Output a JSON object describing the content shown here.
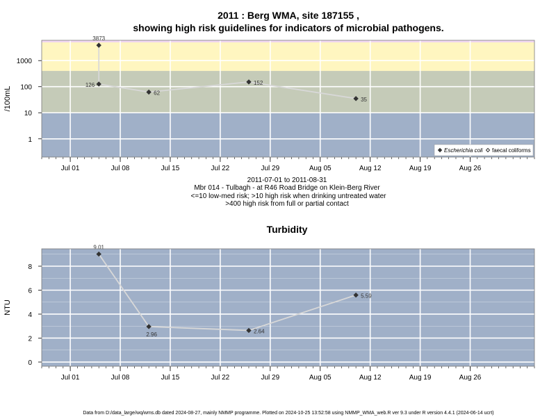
{
  "colors": {
    "low_risk_band": "#a0b0c8",
    "mid_risk_band": "#c5cbb8",
    "high_risk_band": "#fff6c0",
    "very_high_band": "#f2d8f2",
    "line": "#d8d8d8",
    "point": "#333333",
    "grid": "#ffffff"
  },
  "header": {
    "title_line1": "2011 : Berg WMA, site 187155 ,",
    "title_line2": "showing high risk guidelines for indicators of microbial pathogens."
  },
  "middle": {
    "line1": "2011-07-01 to 2011-08-31",
    "line2": "Mbr 014 - Tulbagh - at R46 Road Bridge on Klein-Berg River",
    "line3": "<=10 low-med risk; >10 high risk when drinking untreated water",
    "line4": ">400 high risk from full or partial contact"
  },
  "footer": {
    "text": "Data from D:/data_large/wq/wms.db dated 2024-08-27, mainly NMMP programme. Plotted on 2024-10-25 13:52:58 using NMMP_WMA_web.R ver 9.3 under R version 4.4.1 (2024-06-14 ucrt)"
  },
  "chart_data": [
    {
      "type": "line",
      "title": "",
      "ylabel": "/100mL",
      "y_scale": "log10",
      "ylim": [
        0.2,
        6000
      ],
      "xlim": [
        "2011-06-27",
        "2011-09-04"
      ],
      "y_ticks": [
        1,
        10,
        100,
        1000
      ],
      "y_tick_labels": [
        "1",
        "10",
        "100",
        "1000"
      ],
      "x_ticks": [
        "2011-07-01",
        "2011-07-08",
        "2011-07-15",
        "2011-07-22",
        "2011-07-29",
        "2011-08-05",
        "2011-08-12",
        "2011-08-19",
        "2011-08-26"
      ],
      "x_tick_labels": [
        "Jul 01",
        "Jul 08",
        "Jul 15",
        "Jul 22",
        "Jul 29",
        "Aug 05",
        "Aug 12",
        "Aug 19",
        "Aug 26"
      ],
      "bands": [
        {
          "from": 0.2,
          "to": 10,
          "color": "#a0b0c8"
        },
        {
          "from": 10,
          "to": 400,
          "color": "#c5cbb8"
        },
        {
          "from": 400,
          "to": 5000,
          "color": "#fff6c0"
        },
        {
          "from": 5000,
          "to": 6000,
          "color": "#f2d8f2"
        }
      ],
      "series": [
        {
          "name": "Escherichia coli",
          "marker": "filled-diamond",
          "x": [
            "2011-07-05",
            "2011-07-05",
            "2011-07-12",
            "2011-07-26",
            "2011-08-10"
          ],
          "values": [
            3873,
            126,
            62,
            152,
            35
          ],
          "labels": [
            "3873",
            "126",
            "62",
            "152",
            "35"
          ],
          "label_side": [
            "top",
            "left",
            "right",
            "right",
            "right"
          ]
        },
        {
          "name": "faecal coliforms",
          "marker": "open-diamond",
          "x": [],
          "values": [],
          "labels": []
        }
      ],
      "legend": {
        "position": "bottom-right",
        "entries": [
          "Escherichia coli",
          "faecal coliforms"
        ]
      },
      "grid": true
    },
    {
      "type": "line",
      "title": "Turbidity",
      "ylabel": "NTU",
      "y_scale": "linear",
      "ylim": [
        -0.35,
        9.45
      ],
      "xlim": [
        "2011-06-27",
        "2011-09-04"
      ],
      "y_ticks": [
        0,
        2,
        4,
        6,
        8
      ],
      "y_tick_labels": [
        "0",
        "2",
        "4",
        "6",
        "8"
      ],
      "x_ticks": [
        "2011-07-01",
        "2011-07-08",
        "2011-07-15",
        "2011-07-22",
        "2011-07-29",
        "2011-08-05",
        "2011-08-12",
        "2011-08-19",
        "2011-08-26"
      ],
      "x_tick_labels": [
        "Jul 01",
        "Jul 08",
        "Jul 15",
        "Jul 22",
        "Jul 29",
        "Aug 05",
        "Aug 12",
        "Aug 19",
        "Aug 26"
      ],
      "series": [
        {
          "name": "Turbidity",
          "marker": "filled-diamond",
          "x": [
            "2011-07-05",
            "2011-07-12",
            "2011-07-26",
            "2011-08-10"
          ],
          "values": [
            9.01,
            2.96,
            2.64,
            5.59
          ],
          "labels": [
            "9.01",
            "2.96",
            "2.64",
            "5.59"
          ],
          "label_side": [
            "top",
            "bottom",
            "right",
            "right"
          ]
        }
      ],
      "grid": true
    }
  ]
}
